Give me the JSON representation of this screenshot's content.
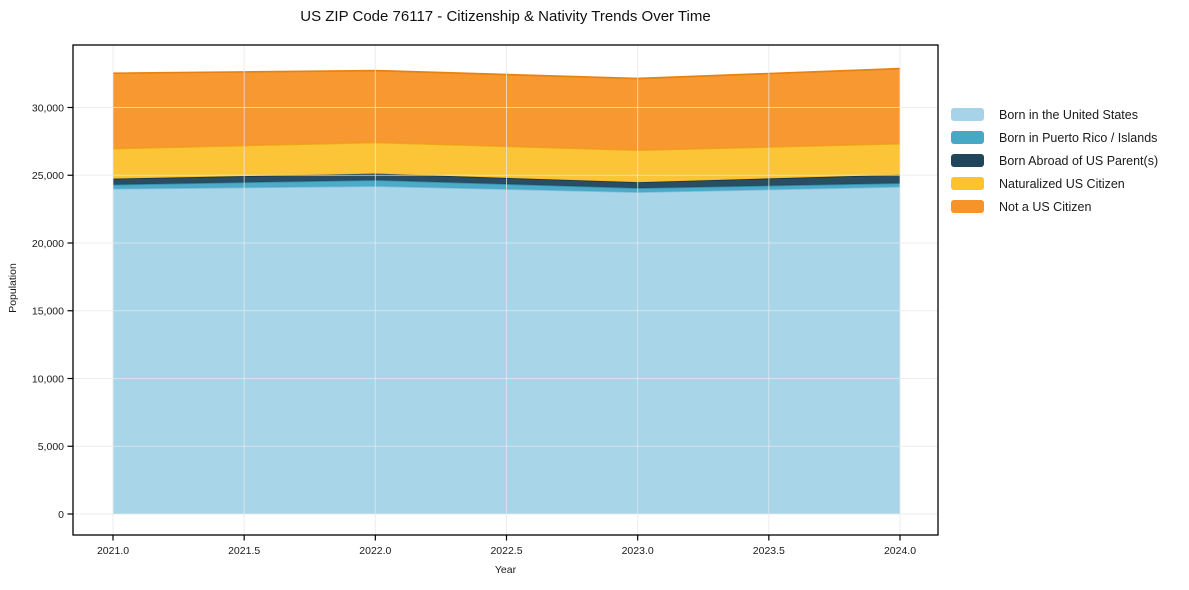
{
  "page": {
    "background": "#ffffff"
  },
  "chart_data": {
    "type": "area",
    "stacked": true,
    "title": "US ZIP Code 76117 - Citizenship & Nativity Trends Over Time",
    "xlabel": "Year",
    "ylabel": "Population",
    "x": [
      2021,
      2022,
      2023,
      2024
    ],
    "series": [
      {
        "name": "Born in the United States",
        "color": "#A6D3E8",
        "edge": "#85BEDD",
        "values": [
          24000,
          24200,
          23750,
          24150
        ]
      },
      {
        "name": "Born in Puerto Rico / Islands",
        "color": "#47A8C5",
        "edge": "#2E8FAE",
        "values": [
          310,
          440,
          300,
          260
        ]
      },
      {
        "name": "Born Abroad of US Parent(s)",
        "color": "#21465C",
        "edge": "#16364A",
        "values": [
          440,
          480,
          440,
          630
        ]
      },
      {
        "name": "Naturalized US Citizen",
        "color": "#FCC32F",
        "edge": "#EBAD10",
        "values": [
          2220,
          2300,
          2360,
          2290
        ]
      },
      {
        "name": "Not a US Citizen",
        "color": "#F79429",
        "edge": "#E8820F",
        "values": [
          5560,
          5300,
          5290,
          5540
        ]
      }
    ],
    "totals": [
      32530,
      32720,
      32140,
      32870
    ],
    "xticks": [
      2021.0,
      2021.5,
      2022.0,
      2022.5,
      2023.0,
      2023.5,
      2024.0
    ],
    "xtick_labels": [
      "2021.0",
      "2021.5",
      "2022.0",
      "2022.5",
      "2023.0",
      "2023.5",
      "2024.0"
    ],
    "yticks": [
      0,
      5000,
      10000,
      15000,
      20000,
      25000,
      30000
    ],
    "ytick_labels": [
      "0",
      "5,000",
      "10,000",
      "15,000",
      "20,000",
      "25,000",
      "30,000"
    ],
    "xlim": [
      2020.84,
      2024.14
    ],
    "ylim": [
      -1550,
      34600
    ],
    "grid": true,
    "grid_color": "#e8e8e8",
    "axis_color": "#000000",
    "text_color": "#1a1a1a",
    "legend_position": "right"
  }
}
